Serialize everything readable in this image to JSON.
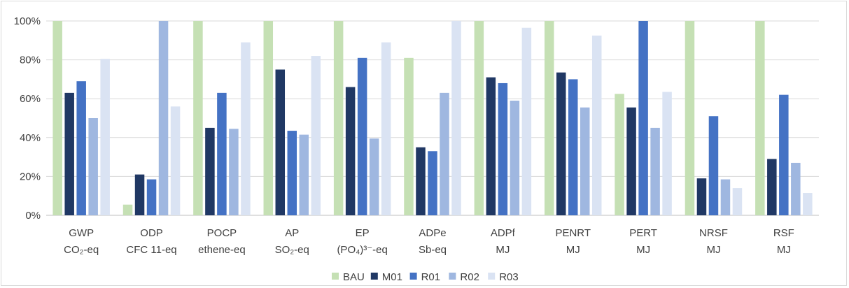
{
  "chart_data": {
    "type": "bar",
    "categories": [
      {
        "top": "GWP",
        "bottom": "CO₂-eq"
      },
      {
        "top": "ODP",
        "bottom": "CFC 11-eq"
      },
      {
        "top": "POCP",
        "bottom": "ethene-eq"
      },
      {
        "top": "AP",
        "bottom": "SO₂-eq"
      },
      {
        "top": "EP",
        "bottom": "(PO₄)³⁻-eq"
      },
      {
        "top": "ADPe",
        "bottom": "Sb-eq"
      },
      {
        "top": "ADPf",
        "bottom": "MJ"
      },
      {
        "top": "PENRT",
        "bottom": "MJ"
      },
      {
        "top": "PERT",
        "bottom": "MJ"
      },
      {
        "top": "NRSF",
        "bottom": "MJ"
      },
      {
        "top": "RSF",
        "bottom": "MJ"
      }
    ],
    "series": [
      {
        "name": "BAU",
        "color": "#c5e0b4",
        "values": [
          100,
          5.5,
          100,
          100,
          100,
          81,
          100,
          100,
          62.5,
          100,
          100
        ]
      },
      {
        "name": "M01",
        "color": "#203864",
        "values": [
          63,
          21,
          45,
          75,
          66,
          35,
          71,
          73.5,
          55.5,
          19,
          29
        ]
      },
      {
        "name": "R01",
        "color": "#4472c4",
        "values": [
          69,
          18.5,
          63,
          43.5,
          81,
          33,
          68,
          70,
          100,
          51,
          62
        ]
      },
      {
        "name": "R02",
        "color": "#9fb7e0",
        "values": [
          50,
          100,
          44.5,
          41.5,
          39.5,
          63,
          59,
          55.5,
          45,
          18.5,
          27
        ]
      },
      {
        "name": "R03",
        "color": "#dae3f3",
        "values": [
          80.5,
          56,
          89,
          82,
          89,
          100,
          96.5,
          92.5,
          63.5,
          14,
          11.5
        ]
      }
    ],
    "y_ticks": [
      "0%",
      "20%",
      "40%",
      "60%",
      "80%",
      "100%"
    ],
    "ylim": [
      0,
      100
    ],
    "y_format": "percent",
    "grid": true,
    "legend": "bottom"
  }
}
